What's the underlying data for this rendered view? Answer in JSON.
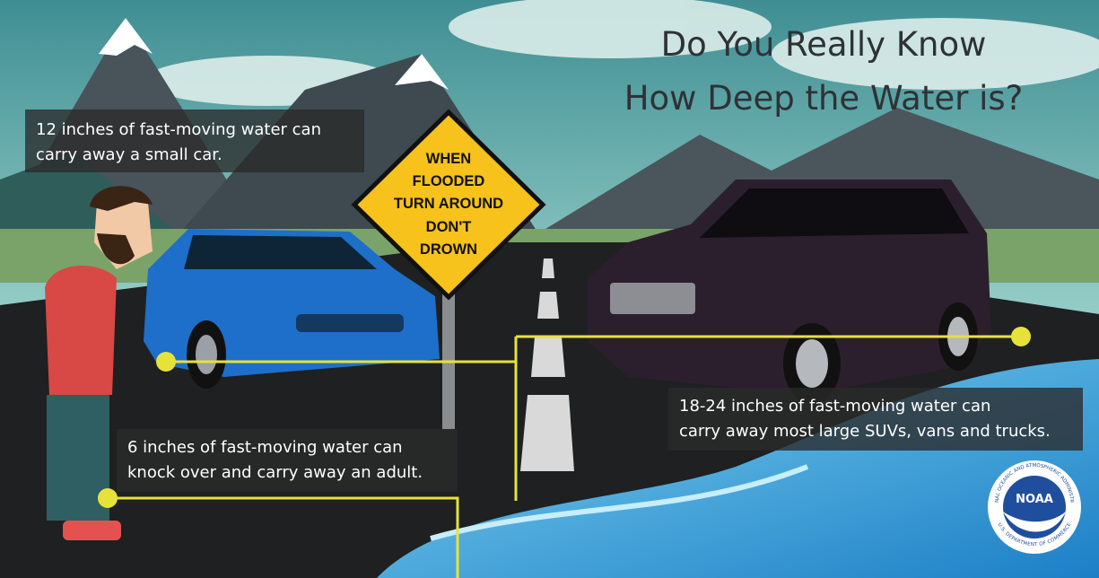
{
  "title": {
    "lines": [
      "Do You Really Know",
      "How Deep the Water is?"
    ]
  },
  "sign": {
    "lines": [
      "WHEN",
      "FLOODED",
      "TURN AROUND",
      "DON'T",
      "DROWN"
    ]
  },
  "callouts": [
    {
      "lines": [
        "12 inches of fast-moving water can",
        "carry away a small car."
      ]
    },
    {
      "lines": [
        "6 inches of fast-moving water can",
        "knock over and carry away an adult."
      ]
    },
    {
      "lines": [
        "18-24 inches of fast-moving water can",
        "carry away most large SUVs, vans and trucks."
      ]
    }
  ],
  "logo": {
    "name": "NOAA",
    "ring_top": "NATIONAL OCEANIC AND ATMOSPHERIC ADMINISTRATION",
    "ring_bottom": "U.S. DEPARTMENT OF COMMERCE"
  }
}
